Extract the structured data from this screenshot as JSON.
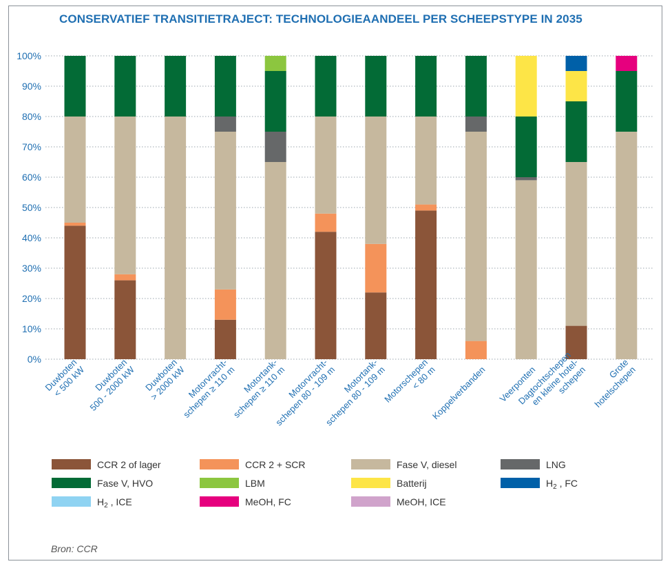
{
  "chart_data": {
    "type": "bar",
    "stacked": true,
    "title": "CONSERVATIEF TRANSITIETRAJECT: TECHNOLOGIEAANDEEL PER SCHEEPSTYPE IN 2035",
    "source": "Bron: CCR",
    "ylim": [
      0,
      100
    ],
    "yticks": [
      "0%",
      "10%",
      "20%",
      "30%",
      "40%",
      "50%",
      "60%",
      "70%",
      "80%",
      "90%",
      "100%"
    ],
    "grid": "horizontal dotted",
    "legend_position": "bottom",
    "categories": [
      [
        "Duwboten",
        "< 500 kW"
      ],
      [
        "Duwboten",
        "500 - 2000 kW"
      ],
      [
        "Duwboten",
        "> 2000 kW"
      ],
      [
        "Motorvracht-",
        "schepen ≥ 110 m"
      ],
      [
        "Motortank-",
        "schepen ≥ 110 m"
      ],
      [
        "Motorvracht-",
        "schepen 80 - 109 m"
      ],
      [
        "Motortank-",
        "schepen 80 - 109 m"
      ],
      [
        "Motorschepen",
        "< 80 m"
      ],
      [
        "Koppelverbanden"
      ],
      [
        "Veerponten"
      ],
      [
        "Dagtochtschepen",
        "en kleine hotel-",
        "schepen"
      ],
      [
        "Grote",
        "hotelschepen"
      ]
    ],
    "series": [
      {
        "name": "CCR 2 of lager",
        "color": "#8b5539",
        "values": [
          44,
          26,
          0,
          13,
          0,
          42,
          22,
          49,
          0,
          0,
          11,
          0
        ]
      },
      {
        "name": "CCR 2 + SCR",
        "color": "#f4935a",
        "values": [
          1,
          2,
          0,
          10,
          0,
          6,
          16,
          2,
          6,
          0,
          0,
          0
        ]
      },
      {
        "name": "Fase V, diesel",
        "color": "#c6b89e",
        "values": [
          35,
          52,
          80,
          52,
          65,
          32,
          42,
          29,
          69,
          59,
          54,
          75
        ]
      },
      {
        "name": "LNG",
        "color": "#666869",
        "values": [
          0,
          0,
          0,
          5,
          10,
          0,
          0,
          0,
          5,
          1,
          0,
          0
        ]
      },
      {
        "name": "Fase V, HVO",
        "color": "#036b36",
        "values": [
          20,
          20,
          20,
          20,
          20,
          20,
          20,
          20,
          20,
          20,
          20,
          20
        ]
      },
      {
        "name": "LBM",
        "color": "#8cc63f",
        "values": [
          0,
          0,
          0,
          0,
          5,
          0,
          0,
          0,
          0,
          0,
          0,
          0
        ]
      },
      {
        "name": "Batterij",
        "color": "#fde547",
        "values": [
          0,
          0,
          0,
          0,
          0,
          0,
          0,
          0,
          0,
          20,
          10,
          0
        ]
      },
      {
        "name": "H₂ , FC",
        "label_main": "H",
        "label_sub": "2",
        "label_rest": " , FC",
        "color": "#0060a8",
        "values": [
          0,
          0,
          0,
          0,
          0,
          0,
          0,
          0,
          0,
          0,
          5,
          0
        ]
      },
      {
        "name": "H₂ , ICE",
        "label_main": "H",
        "label_sub": "2",
        "label_rest": " , ICE",
        "color": "#8fd3f2",
        "values": [
          0,
          0,
          0,
          0,
          0,
          0,
          0,
          0,
          0,
          0,
          0,
          0
        ]
      },
      {
        "name": "MeOH, FC",
        "color": "#e6007e",
        "values": [
          0,
          0,
          0,
          0,
          0,
          0,
          0,
          0,
          0,
          0,
          0,
          5
        ]
      },
      {
        "name": "MeOH, ICE",
        "color": "#d0a3cb",
        "values": [
          0,
          0,
          0,
          0,
          0,
          0,
          0,
          0,
          0,
          0,
          0,
          0
        ]
      }
    ]
  }
}
